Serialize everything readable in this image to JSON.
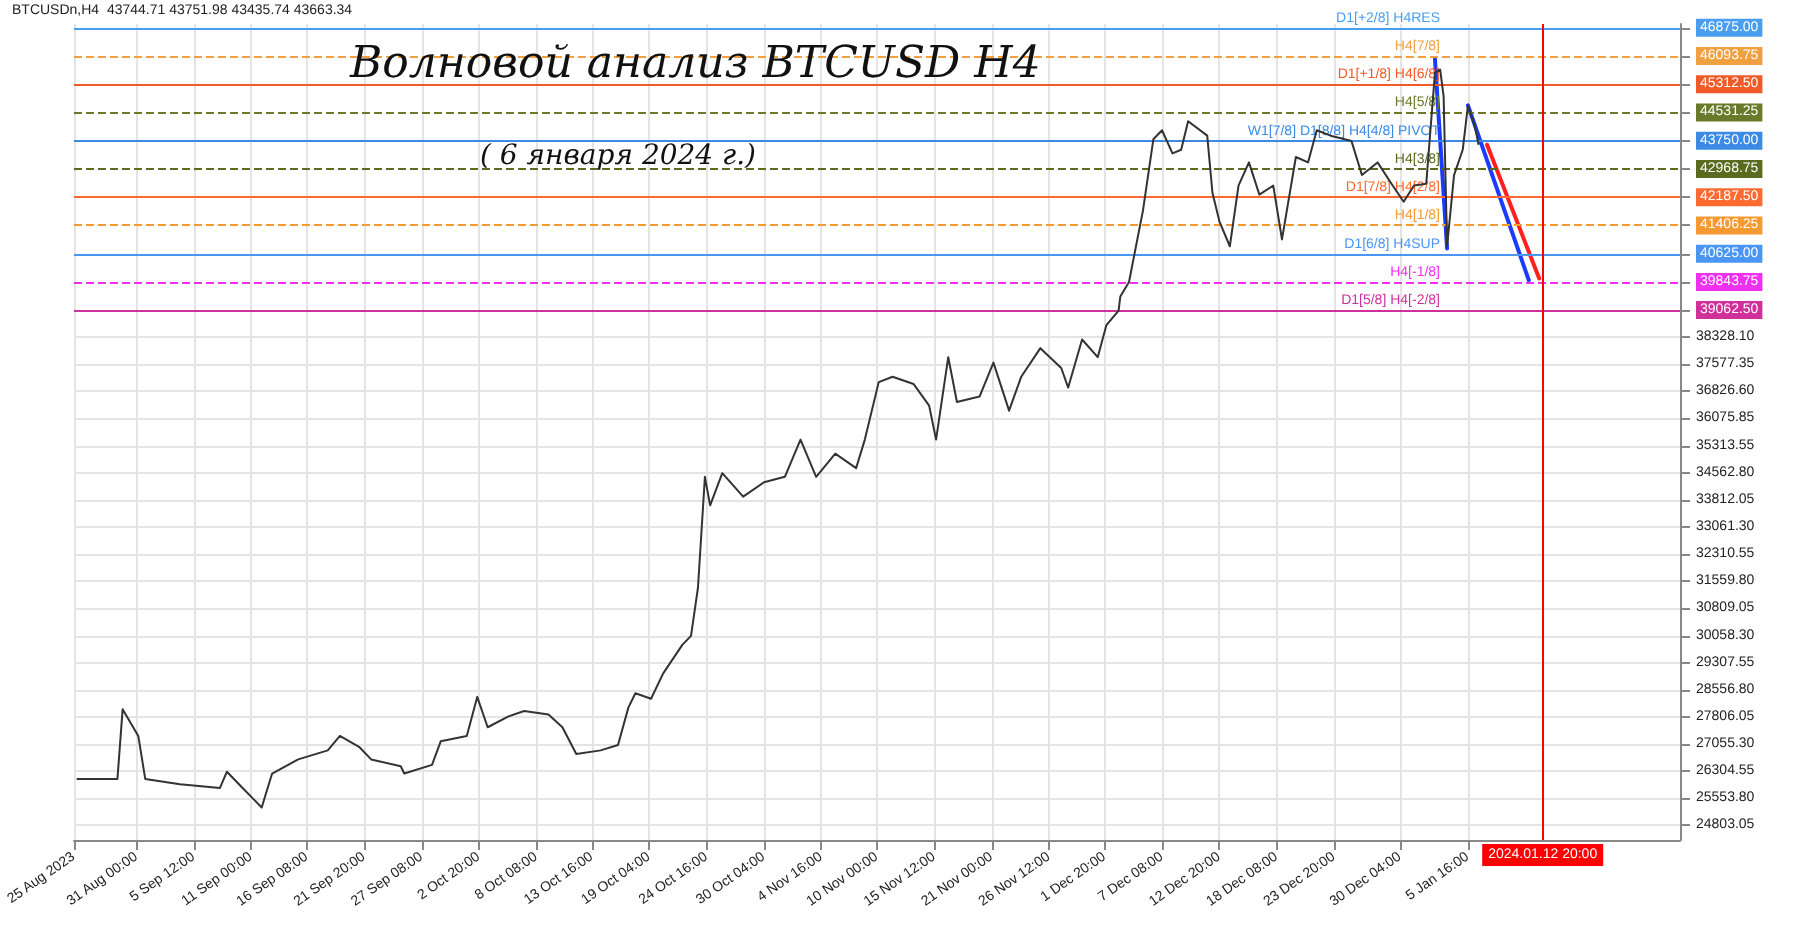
{
  "chart_data": {
    "type": "line",
    "title": "Волновой анализ BTCUSD H4",
    "subtitle": "( 6 января 2024 г.)",
    "annotations": [
      "BTCUSDn,H4  43744.71 43751.98 43435.74 43663.34"
    ],
    "xlim": [
      "2023-08-25T00:00",
      "2024-01-26T00:00"
    ],
    "xticks": [
      {
        "value": "2023-08-25T00:00",
        "label": "25 Aug 2023"
      },
      {
        "value": "2023-08-31T00:00",
        "label": "31 Aug 00:00"
      },
      {
        "value": "2023-09-05T12:00",
        "label": "5 Sep 12:00"
      },
      {
        "value": "2023-09-11T00:00",
        "label": "11 Sep 00:00"
      },
      {
        "value": "2023-09-16T08:00",
        "label": "16 Sep 08:00"
      },
      {
        "value": "2023-09-21T20:00",
        "label": "21 Sep 20:00"
      },
      {
        "value": "2023-09-27T08:00",
        "label": "27 Sep 08:00"
      },
      {
        "value": "2023-10-02T20:00",
        "label": "2 Oct 20:00"
      },
      {
        "value": "2023-10-08T08:00",
        "label": "8 Oct 08:00"
      },
      {
        "value": "2023-10-13T16:00",
        "label": "13 Oct 16:00"
      },
      {
        "value": "2023-10-19T04:00",
        "label": "19 Oct 04:00"
      },
      {
        "value": "2023-10-24T16:00",
        "label": "24 Oct 16:00"
      },
      {
        "value": "2023-10-30T04:00",
        "label": "30 Oct 04:00"
      },
      {
        "value": "2023-11-04T16:00",
        "label": "4 Nov 16:00"
      },
      {
        "value": "2023-11-10T00:00",
        "label": "10 Nov 00:00"
      },
      {
        "value": "2023-11-15T12:00",
        "label": "15 Nov 12:00"
      },
      {
        "value": "2023-11-21T00:00",
        "label": "21 Nov 00:00"
      },
      {
        "value": "2023-11-26T12:00",
        "label": "26 Nov 12:00"
      },
      {
        "value": "2023-12-01T20:00",
        "label": "1 Dec 20:00"
      },
      {
        "value": "2023-12-07T08:00",
        "label": "7 Dec 08:00"
      },
      {
        "value": "2023-12-12T20:00",
        "label": "12 Dec 20:00"
      },
      {
        "value": "2023-12-18T08:00",
        "label": "18 Dec 08:00"
      },
      {
        "value": "2023-12-23T20:00",
        "label": "23 Dec 20:00"
      },
      {
        "value": "2023-12-30T04:00",
        "label": "30 Dec 04:00"
      },
      {
        "value": "2024-01-05T16:00",
        "label": "5 Jan 16:00"
      }
    ],
    "ylim": [
      24400,
      46980
    ],
    "yticks": [
      {
        "value": 24803.05,
        "label": "24803.05"
      },
      {
        "value": 25553.8,
        "label": "25553.80"
      },
      {
        "value": 26304.55,
        "label": "26304.55"
      },
      {
        "value": 27055.3,
        "label": "27055.30"
      },
      {
        "value": 27806.05,
        "label": "27806.05"
      },
      {
        "value": 28556.8,
        "label": "28556.80"
      },
      {
        "value": 29307.55,
        "label": "29307.55"
      },
      {
        "value": 30058.3,
        "label": "30058.30"
      },
      {
        "value": 30809.05,
        "label": "30809.05"
      },
      {
        "value": 31559.8,
        "label": "31559.80"
      },
      {
        "value": 32310.55,
        "label": "32310.55"
      },
      {
        "value": 33061.3,
        "label": "33061.30"
      },
      {
        "value": 33812.05,
        "label": "33812.05"
      },
      {
        "value": 34562.8,
        "label": "34562.80"
      },
      {
        "value": 35313.55,
        "label": "35313.55"
      },
      {
        "value": 36075.85,
        "label": "36075.85"
      },
      {
        "value": 36826.6,
        "label": "36826.60"
      },
      {
        "value": 37577.35,
        "label": "37577.35"
      },
      {
        "value": 38328.1,
        "label": "38328.10"
      },
      {
        "value": 39062.5,
        "label": "39062.50"
      },
      {
        "value": 39843.75,
        "label": "39843.75"
      },
      {
        "value": 40625,
        "label": "40625.00"
      },
      {
        "value": 41406.25,
        "label": "41406.25"
      },
      {
        "value": 42187.5,
        "label": "42187.50"
      },
      {
        "value": 42968.75,
        "label": "42968.75"
      },
      {
        "value": 43750,
        "label": "43750.00"
      },
      {
        "value": 44531.25,
        "label": "44531.25"
      },
      {
        "value": 45312.5,
        "label": "45312.50"
      },
      {
        "value": 46093.75,
        "label": "46093.75"
      },
      {
        "value": 46875,
        "label": "46875.00"
      }
    ],
    "grid": true,
    "marker": "none",
    "line_style": "solid",
    "series": [
      {
        "color": "#333333",
        "x": [
          "2023-08-25T08:00",
          "2023-08-29T04:00",
          "2023-08-29T16:00",
          "2023-08-31T04:00",
          "2023-08-31T20:00",
          "2023-09-04T04:00",
          "2023-09-08T00:00",
          "2023-09-08T16:00",
          "2023-09-10T04:00",
          "2023-09-12T00:00",
          "2023-09-13T00:00",
          "2023-09-15T12:00",
          "2023-09-18T08:00",
          "2023-09-19T12:00",
          "2023-09-21T08:00",
          "2023-09-22T12:00",
          "2023-09-25T08:00",
          "2023-09-25T16:00",
          "2023-09-28T08:00",
          "2023-09-29T04:00",
          "2023-10-01T16:00",
          "2023-10-02T16:00",
          "2023-10-03T16:00",
          "2023-10-05T16:00",
          "2023-10-07T04:00",
          "2023-10-09T12:00",
          "2023-10-10T20:00",
          "2023-10-12T04:00",
          "2023-10-14T12:00",
          "2023-10-16T04:00",
          "2023-10-17T04:00",
          "2023-10-17T20:00",
          "2023-10-19T08:00",
          "2023-10-20T12:00",
          "2023-10-22T08:00",
          "2023-10-23T04:00",
          "2023-10-23T20:00",
          "2023-10-24T12:00",
          "2023-10-25T00:00",
          "2023-10-26T04:00",
          "2023-10-28T04:00",
          "2023-10-30T04:00",
          "2023-11-01T04:00",
          "2023-11-02T16:00",
          "2023-11-04T04:00",
          "2023-11-06T00:00",
          "2023-11-08T00:00",
          "2023-11-08T20:00",
          "2023-11-10T04:00",
          "2023-11-11T12:00",
          "2023-11-13T12:00",
          "2023-11-15T00:00",
          "2023-11-15T16:00",
          "2023-11-16T20:00",
          "2023-11-17T16:00",
          "2023-11-19T20:00",
          "2023-11-21T04:00",
          "2023-11-22T16:00",
          "2023-11-23T20:00",
          "2023-11-25T16:00",
          "2023-11-27T16:00",
          "2023-11-28T08:00",
          "2023-11-29T16:00",
          "2023-12-01T04:00",
          "2023-12-02T00:00",
          "2023-12-03T04:00",
          "2023-12-03T08:00",
          "2023-12-04T04:00",
          "2023-12-04T20:00",
          "2023-12-05T12:00",
          "2023-12-06T12:00",
          "2023-12-07T08:00",
          "2023-12-08T08:00",
          "2023-12-09T04:00",
          "2023-12-09T20:00",
          "2023-12-11T16:00",
          "2023-12-12T04:00",
          "2023-12-12T20:00",
          "2023-12-13T20:00",
          "2023-12-14T16:00",
          "2023-12-15T16:00",
          "2023-12-16T16:00",
          "2023-12-18T00:00",
          "2023-12-18T20:00",
          "2023-12-20T04:00",
          "2023-12-21T08:00",
          "2023-12-22T04:00",
          "2023-12-23T12:00",
          "2023-12-25T12:00",
          "2023-12-26T12:00",
          "2023-12-28T00:00",
          "2023-12-29T08:00",
          "2023-12-30T12:00",
          "2023-12-31T12:00",
          "2024-01-01T16:00",
          "2024-01-02T12:00",
          "2024-01-03T00:00",
          "2024-01-03T08:00",
          "2024-01-03T16:00",
          "2024-01-04T08:00",
          "2024-01-05T04:00",
          "2024-01-05T16:00",
          "2024-01-06T08:00",
          "2024-01-06T16:00"
        ],
        "values": [
          26090,
          26090,
          28020,
          27280,
          26090,
          25940,
          25840,
          26290,
          25840,
          25300,
          26240,
          26630,
          26880,
          27280,
          26980,
          26630,
          26440,
          26240,
          26480,
          27130,
          27280,
          28360,
          27520,
          27820,
          27970,
          27870,
          27520,
          26780,
          26880,
          27030,
          28070,
          28460,
          28310,
          29010,
          29800,
          30050,
          31380,
          34450,
          33660,
          34550,
          33900,
          34300,
          34450,
          35480,
          34450,
          35090,
          34690,
          35480,
          37070,
          37220,
          37020,
          36420,
          35480,
          37760,
          36520,
          36670,
          37610,
          36280,
          37220,
          38010,
          37460,
          36920,
          38250,
          37760,
          38650,
          39050,
          39440,
          39840,
          40830,
          41810,
          43790,
          44040,
          43400,
          43500,
          44290,
          43890,
          42310,
          41520,
          40830,
          42510,
          43150,
          42260,
          42510,
          41020,
          43300,
          43150,
          44040,
          43890,
          43740,
          42800,
          43150,
          42560,
          42060,
          42510,
          42560,
          45620,
          45720,
          44980,
          40830,
          42800,
          43500,
          44730,
          44140,
          43660
        ]
      },
      {
        "color": "#1a3cff",
        "x": [
          "2024-01-02T12:00",
          "2024-01-03T16:00"
        ],
        "values": [
          46020,
          40770
        ]
      },
      {
        "color": "#1a3cff",
        "x": [
          "2024-01-05T16:00",
          "2024-01-11T12:00"
        ],
        "values": [
          44730,
          39890
        ]
      },
      {
        "color": "#ff2020",
        "x": [
          "2024-01-07T12:00",
          "2024-01-12T12:00"
        ],
        "values": [
          43640,
          39940
        ]
      }
    ],
    "ref_lines": [
      {
        "axis": "y",
        "value": 46875,
        "label": "D1[+2/8] H4RES",
        "color": "#4a9ef0",
        "line_style": "solid"
      },
      {
        "axis": "y",
        "value": 46093.75,
        "label": "H4[7/8]",
        "color": "#f0a040",
        "line_style": "dashed"
      },
      {
        "axis": "y",
        "value": 45312.5,
        "label": "D1[+1/8] H4[6/8]",
        "color": "#f05a28",
        "line_style": "solid"
      },
      {
        "axis": "y",
        "value": 44531.25,
        "label": "H4[5/8]",
        "color": "#6b7a2a",
        "line_style": "dashed"
      },
      {
        "axis": "y",
        "value": 43750,
        "label": "W1[7/8] D1[8/8] H4[4/8] PIVOT",
        "color": "#3a8ae6",
        "line_style": "solid"
      },
      {
        "axis": "y",
        "value": 42968.75,
        "label": "H4[3/8]",
        "color": "#5a6b20",
        "line_style": "dashed"
      },
      {
        "axis": "y",
        "value": 42187.5,
        "label": "D1[7/8] H4[2/8]",
        "color": "#ff6a30",
        "line_style": "solid"
      },
      {
        "axis": "y",
        "value": 41406.25,
        "label": "H4[1/8]",
        "color": "#f59a30",
        "line_style": "dashed"
      },
      {
        "axis": "y",
        "value": 40625,
        "label": "D1[6/8] H4SUP",
        "color": "#4a96f2",
        "line_style": "solid"
      },
      {
        "axis": "y",
        "value": 39843.75,
        "label": "H4[-1/8]",
        "color": "#f030f0",
        "line_style": "dashed"
      },
      {
        "axis": "y",
        "value": 39062.5,
        "label": "D1[5/8] H4[-2/8]",
        "color": "#d0309a",
        "line_style": "solid"
      },
      {
        "axis": "x",
        "value": "2024-01-12T20:00",
        "label": "2024.01.12 20:00",
        "color": "#ff0000",
        "line_style": "solid"
      }
    ]
  }
}
